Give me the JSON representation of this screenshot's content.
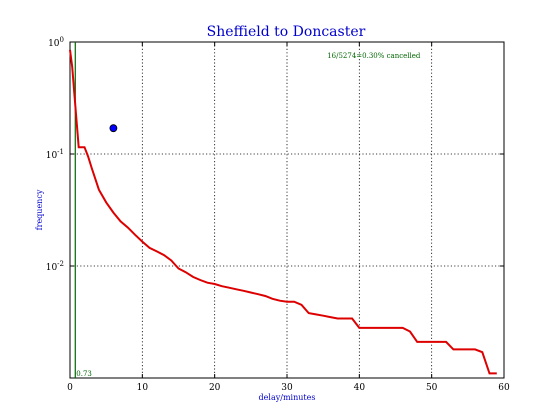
{
  "chart_data": {
    "type": "line",
    "title": "Sheffield to Doncaster",
    "xlabel": "delay/minutes",
    "ylabel": "frequency",
    "xlim": [
      0,
      60
    ],
    "ylim": [
      0.001,
      1
    ],
    "yscale": "log",
    "grid": true,
    "x_ticks": [
      0,
      10,
      20,
      30,
      40,
      50,
      60
    ],
    "y_ticks": [
      {
        "value": 1,
        "base": "10",
        "exp": "0"
      },
      {
        "value": 0.1,
        "base": "10",
        "exp": "-1"
      },
      {
        "value": 0.01,
        "base": "10",
        "exp": "-2"
      }
    ],
    "series": [
      {
        "color": "#dd0000",
        "x": [
          0,
          0.3,
          0.6,
          0.9,
          1.2,
          2,
          2.5,
          3,
          3.5,
          4,
          5,
          6,
          7,
          8,
          9,
          10,
          11,
          12,
          13,
          14,
          15,
          16,
          17,
          18,
          19,
          20,
          21,
          22,
          23,
          24,
          25,
          26,
          27,
          28,
          29,
          30,
          31,
          32,
          33,
          34,
          35,
          36,
          37,
          38,
          39,
          40,
          41,
          42,
          43,
          44,
          45,
          46,
          47,
          48,
          49,
          50,
          51,
          52,
          53,
          54,
          55,
          56,
          57,
          58,
          59
        ],
        "y": [
          0.85,
          0.6,
          0.35,
          0.2,
          0.115,
          0.115,
          0.095,
          0.075,
          0.06,
          0.048,
          0.037,
          0.03,
          0.025,
          0.022,
          0.019,
          0.0165,
          0.0145,
          0.0135,
          0.0125,
          0.0112,
          0.0095,
          0.0088,
          0.008,
          0.0075,
          0.0071,
          0.0069,
          0.0066,
          0.0064,
          0.0062,
          0.006,
          0.0058,
          0.0056,
          0.0054,
          0.0051,
          0.0049,
          0.0048,
          0.0048,
          0.0045,
          0.0038,
          0.0037,
          0.0036,
          0.0035,
          0.0034,
          0.0034,
          0.0034,
          0.0028,
          0.0028,
          0.0028,
          0.0028,
          0.0028,
          0.0028,
          0.0028,
          0.0026,
          0.0021,
          0.0021,
          0.0021,
          0.0021,
          0.0021,
          0.0018,
          0.0018,
          0.0018,
          0.0018,
          0.0017,
          0.0011,
          0.0011
        ]
      }
    ],
    "point": {
      "x": 6,
      "y": 0.17,
      "color": "#0000ff"
    },
    "median_line": {
      "x": 0.73,
      "label": "0.73",
      "color": "#006600"
    },
    "annotation": "16/5274=0.30% cancelled"
  }
}
